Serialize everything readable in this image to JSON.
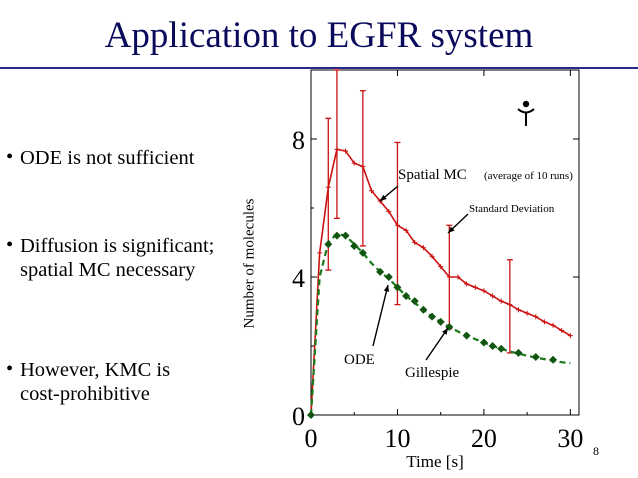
{
  "slide": {
    "title": "Application to EGFR system",
    "page_number": "8"
  },
  "bullets": [
    {
      "lines": [
        "ODE is not sufficient"
      ]
    },
    {
      "lines": [
        "Diffusion is significant;",
        "spatial MC necessary"
      ]
    },
    {
      "lines": [
        "However, KMC is",
        "cost-prohibitive"
      ]
    }
  ],
  "chart_data": {
    "type": "line",
    "xlabel": "Time [s]",
    "ylabel": "Number of molecules",
    "xlim": [
      0,
      31
    ],
    "ylim": [
      0,
      10
    ],
    "x_ticks": [
      "0",
      "10",
      "20",
      "30"
    ],
    "y_ticks": [
      "0",
      "4",
      "8"
    ],
    "series": [
      {
        "name": "Spatial MC",
        "name_note": "(average of 10 runs)",
        "color": "#cc1111",
        "style": "solid",
        "x": [
          0,
          1,
          2,
          3,
          4,
          5,
          6,
          7,
          8,
          9,
          10,
          11,
          12,
          13,
          14,
          15,
          16,
          17,
          18,
          19,
          20,
          21,
          22,
          23,
          24,
          25,
          26,
          27,
          28,
          29,
          30
        ],
        "y": [
          0,
          4.7,
          6.6,
          7.7,
          7.65,
          7.3,
          7.2,
          6.5,
          6.2,
          5.9,
          5.5,
          5.35,
          5.0,
          4.85,
          4.6,
          4.3,
          4.0,
          4.0,
          3.8,
          3.7,
          3.6,
          3.45,
          3.3,
          3.2,
          3.05,
          2.95,
          2.85,
          2.7,
          2.6,
          2.45,
          2.3
        ],
        "error_bars": [
          {
            "x": 2,
            "low": 4.2,
            "high": 8.6
          },
          {
            "x": 3,
            "low": 5.7,
            "high": 10.0
          },
          {
            "x": 6,
            "low": 4.9,
            "high": 9.4
          },
          {
            "x": 10,
            "low": 3.2,
            "high": 7.9
          },
          {
            "x": 16,
            "low": 2.5,
            "high": 5.5
          },
          {
            "x": 23,
            "low": 1.8,
            "high": 4.5
          }
        ]
      },
      {
        "name": "ODE",
        "color": "#1a7a1a",
        "style": "dashed",
        "x": [
          0,
          1,
          2,
          3,
          4,
          5,
          6,
          7,
          8,
          9,
          10,
          11,
          12,
          13,
          14,
          15,
          16,
          17,
          18,
          19,
          20,
          21,
          22,
          23,
          24,
          25,
          26,
          27,
          28,
          29,
          30
        ],
        "y": [
          0,
          4.0,
          5.0,
          5.25,
          5.2,
          4.95,
          4.7,
          4.4,
          4.15,
          3.95,
          3.7,
          3.45,
          3.25,
          3.05,
          2.85,
          2.7,
          2.55,
          2.42,
          2.3,
          2.2,
          2.1,
          2.0,
          1.92,
          1.84,
          1.78,
          1.72,
          1.66,
          1.62,
          1.57,
          1.53,
          1.5
        ]
      },
      {
        "name": "Gillespie",
        "color": "#115511",
        "style": "markers",
        "x": [
          0,
          2,
          3,
          4,
          5,
          6,
          8,
          9,
          10,
          11,
          12,
          13,
          14,
          15,
          16,
          18,
          20,
          21,
          22,
          24,
          26,
          28
        ],
        "y": [
          0,
          4.95,
          5.2,
          5.2,
          4.9,
          4.7,
          4.15,
          4.0,
          3.7,
          3.45,
          3.3,
          3.05,
          2.85,
          2.7,
          2.55,
          2.3,
          2.1,
          2.0,
          1.92,
          1.8,
          1.68,
          1.6
        ]
      }
    ],
    "annotations": [
      {
        "text": "Standard Deviation"
      }
    ]
  },
  "icon": {
    "name": "bio-molecule-icon"
  }
}
